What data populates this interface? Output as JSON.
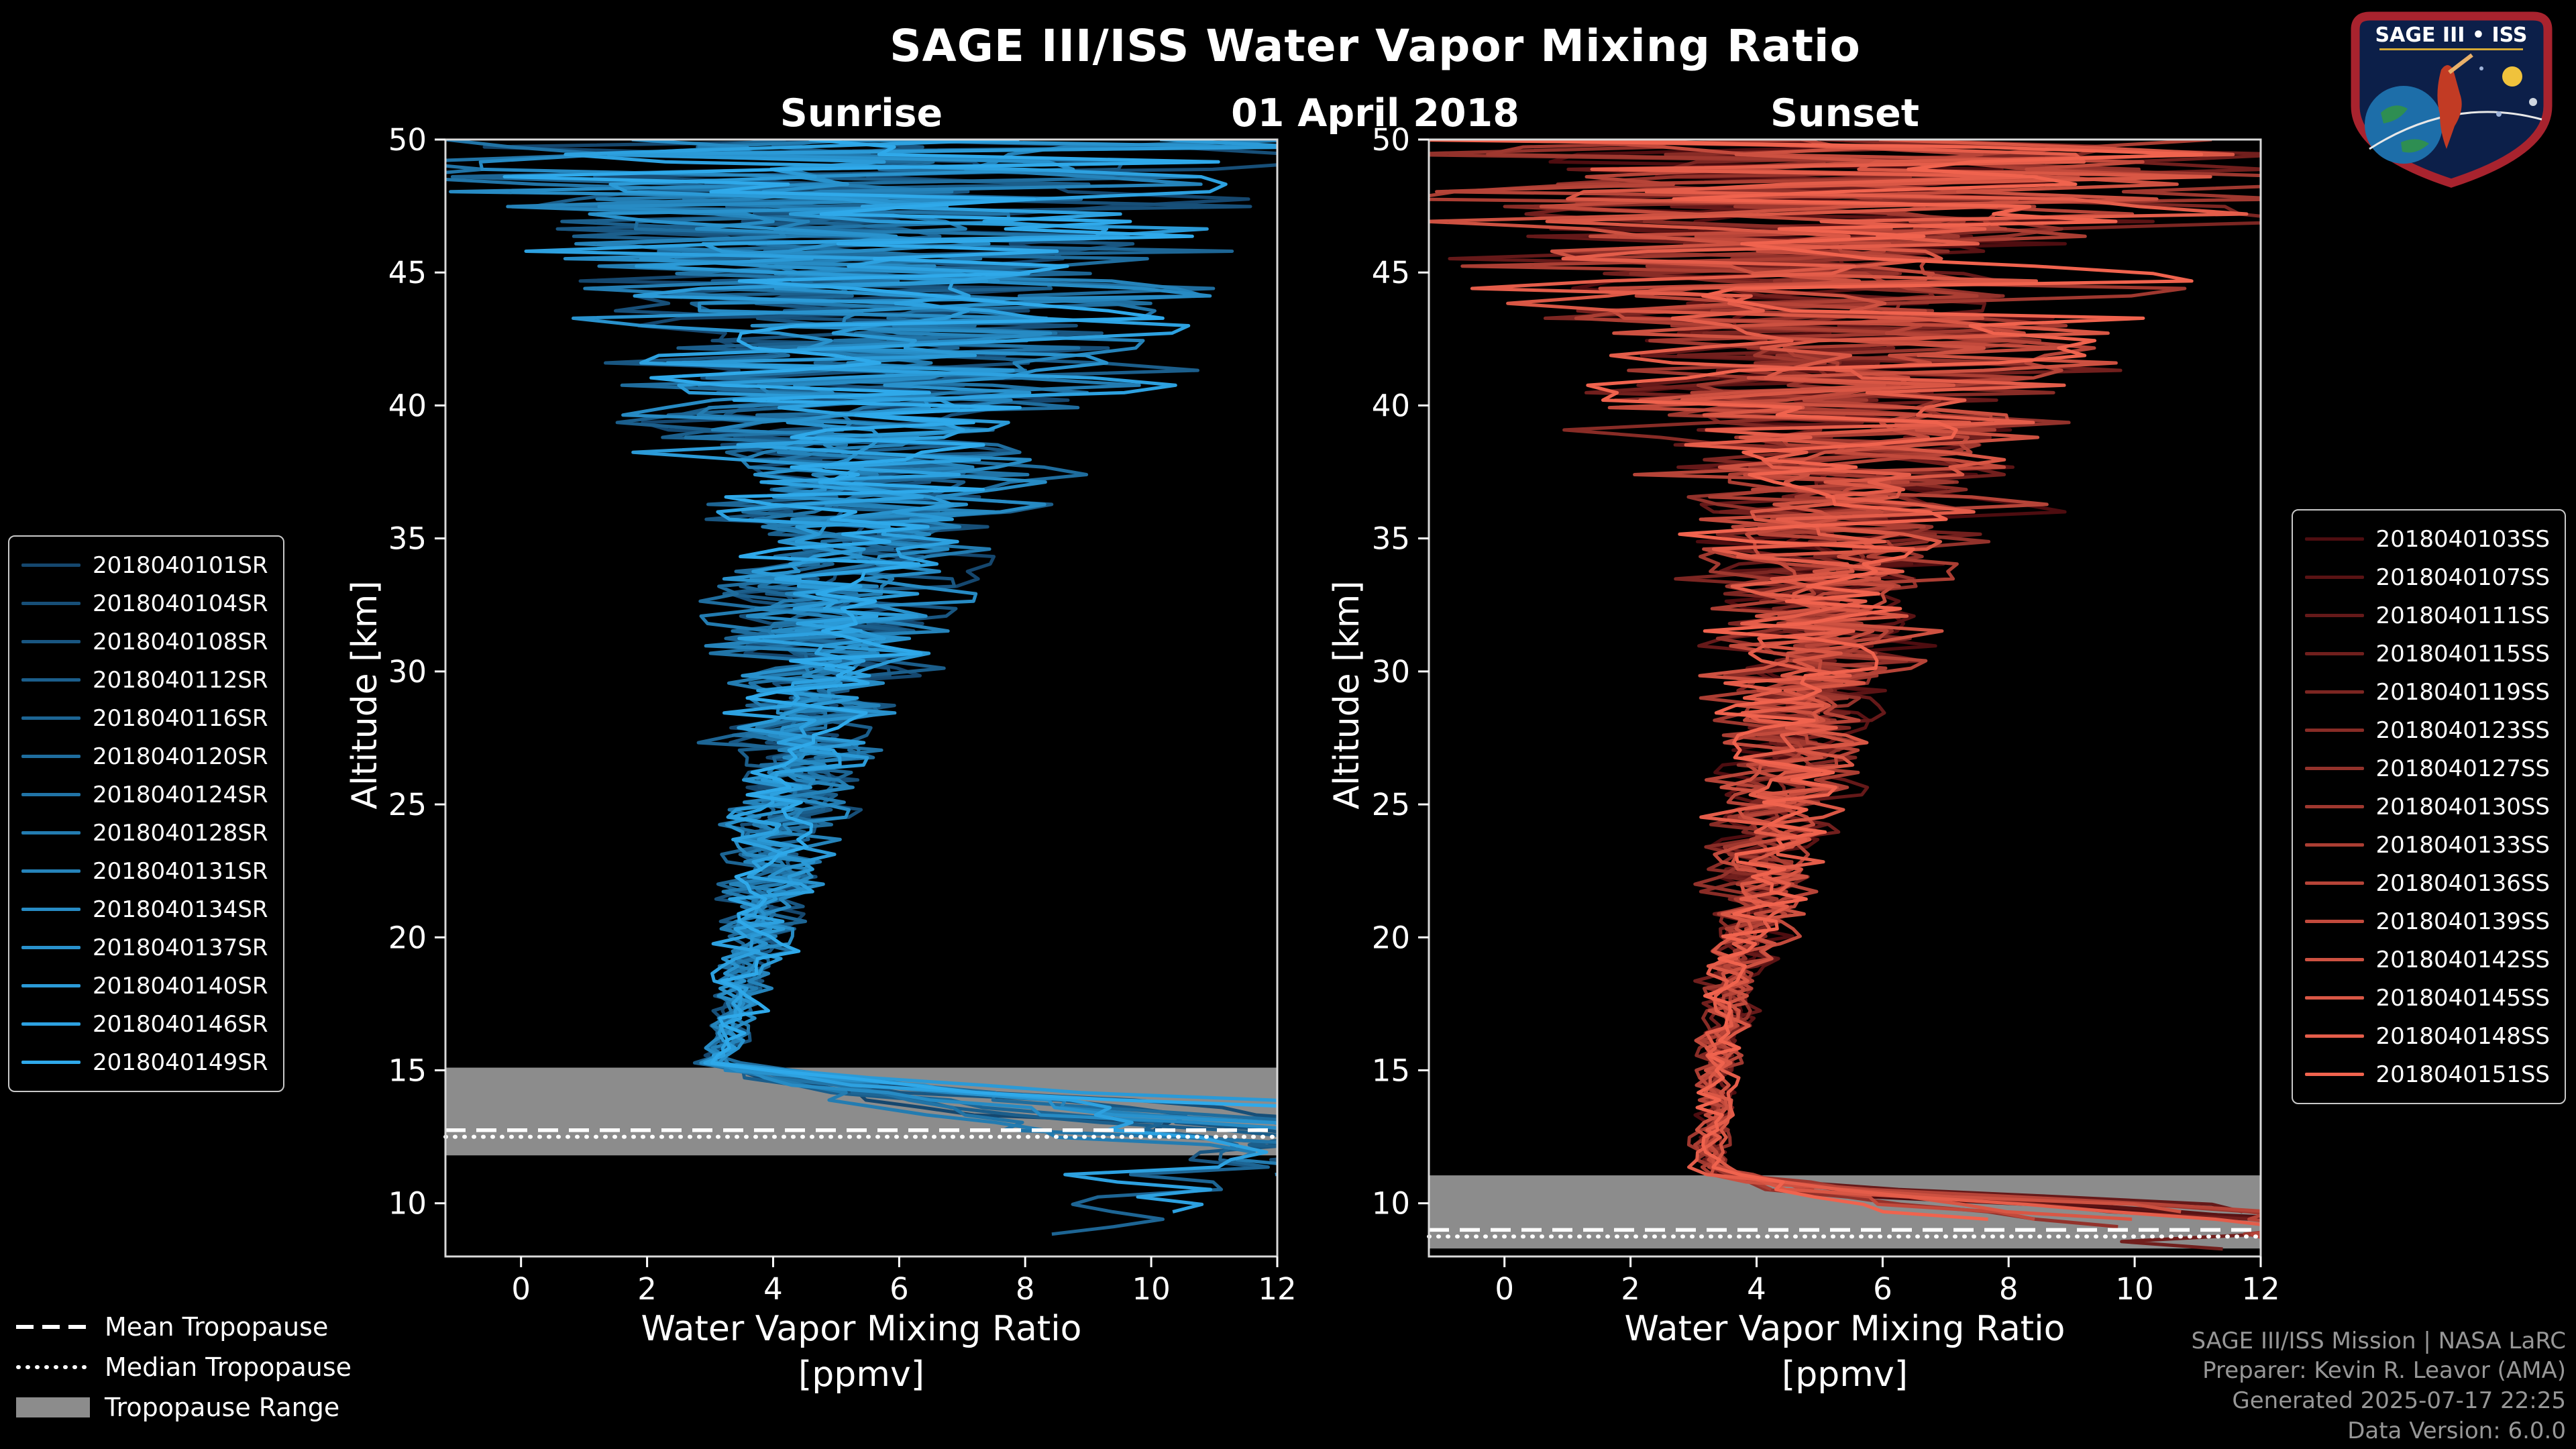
{
  "header": {
    "title": "SAGE III/ISS Water Vapor Mixing Ratio",
    "date": "01 April 2018"
  },
  "logo": {
    "text": "SAGE III • ISS"
  },
  "tropopause_legend": {
    "mean": "Mean Tropopause",
    "median": "Median Tropopause",
    "range": "Tropopause Range",
    "line_color": "#ffffff",
    "range_color": "#8c8c8c"
  },
  "footer": {
    "line1": "SAGE III/ISS Mission | NASA LaRC",
    "line2": "Preparer: Kevin R. Leavor (AMA)",
    "line3": "Generated 2025-07-17 22:25",
    "line4": "Data Version: 6.0.0"
  },
  "chart_data": [
    {
      "type": "line",
      "title": "Sunrise",
      "xlabel_line1": "Water Vapor Mixing Ratio",
      "xlabel_line2": "[ppmv]",
      "ylabel": "Altitude [km]",
      "xlim": [
        -1.2,
        12
      ],
      "ylim": [
        8,
        50
      ],
      "xticks": [
        0,
        2,
        4,
        6,
        8,
        10,
        12
      ],
      "yticks": [
        10,
        15,
        20,
        25,
        30,
        35,
        40,
        45,
        50
      ],
      "grid": false,
      "background": "#000000",
      "legend_position": "outside-left",
      "colors": {
        "start": "#15476e",
        "end": "#2fa9ea"
      },
      "series": [
        {
          "name": "2018040101SR"
        },
        {
          "name": "2018040104SR"
        },
        {
          "name": "2018040108SR"
        },
        {
          "name": "2018040112SR"
        },
        {
          "name": "2018040116SR"
        },
        {
          "name": "2018040120SR"
        },
        {
          "name": "2018040124SR"
        },
        {
          "name": "2018040128SR"
        },
        {
          "name": "2018040131SR"
        },
        {
          "name": "2018040134SR"
        },
        {
          "name": "2018040137SR"
        },
        {
          "name": "2018040140SR"
        },
        {
          "name": "2018040146SR"
        },
        {
          "name": "2018040149SR"
        }
      ],
      "mean_profile": {
        "altitude_km": [
          50,
          46,
          42,
          40,
          36,
          32,
          28,
          24,
          20,
          18,
          16,
          15,
          13,
          11
        ],
        "ppmv": [
          5.2,
          5.4,
          5.5,
          5.4,
          5.2,
          4.9,
          4.6,
          4.2,
          3.8,
          3.5,
          3.2,
          3.1,
          3.0,
          3.0
        ]
      },
      "noise_amplitude": {
        "altitude_km": [
          50,
          46,
          42,
          40,
          36,
          32,
          28,
          24,
          20,
          18,
          16,
          15,
          13,
          11
        ],
        "ppmv": [
          6.6,
          5.4,
          4.1,
          3.4,
          2.4,
          1.7,
          1.25,
          0.95,
          0.62,
          0.45,
          0.3,
          0.25,
          0.25,
          0.25
        ]
      },
      "bend_altitude_km": 15.35,
      "profile_bottom_km": [
        8.3,
        11.5
      ],
      "tropopause": {
        "mean_km": 12.75,
        "median_km": 12.5,
        "range_km": [
          11.8,
          15.1
        ]
      }
    },
    {
      "type": "line",
      "title": "Sunset",
      "xlabel_line1": "Water Vapor Mixing Ratio",
      "xlabel_line2": "[ppmv]",
      "ylabel": "Altitude [km]",
      "xlim": [
        -1.2,
        12
      ],
      "ylim": [
        8,
        50
      ],
      "xticks": [
        0,
        2,
        4,
        6,
        8,
        10,
        12
      ],
      "yticks": [
        10,
        15,
        20,
        25,
        30,
        35,
        40,
        45,
        50
      ],
      "grid": false,
      "background": "#000000",
      "legend_position": "outside-right",
      "colors": {
        "start": "#4e0d10",
        "end": "#f0634e"
      },
      "series": [
        {
          "name": "2018040103SS"
        },
        {
          "name": "2018040107SS"
        },
        {
          "name": "2018040111SS"
        },
        {
          "name": "2018040115SS"
        },
        {
          "name": "2018040119SS"
        },
        {
          "name": "2018040123SS"
        },
        {
          "name": "2018040127SS"
        },
        {
          "name": "2018040130SS"
        },
        {
          "name": "2018040133SS"
        },
        {
          "name": "2018040136SS"
        },
        {
          "name": "2018040139SS"
        },
        {
          "name": "2018040142SS"
        },
        {
          "name": "2018040145SS"
        },
        {
          "name": "2018040148SS"
        },
        {
          "name": "2018040151SS"
        }
      ],
      "mean_profile": {
        "altitude_km": [
          50,
          46,
          42,
          40,
          36,
          32,
          28,
          24,
          20,
          18,
          16,
          14,
          12,
          11
        ],
        "ppmv": [
          5.3,
          5.5,
          5.6,
          5.5,
          5.3,
          5.0,
          4.7,
          4.3,
          3.9,
          3.6,
          3.45,
          3.35,
          3.3,
          3.25
        ]
      },
      "noise_amplitude": {
        "altitude_km": [
          50,
          46,
          42,
          40,
          36,
          32,
          28,
          24,
          20,
          18,
          16,
          14,
          12,
          11
        ],
        "ppmv": [
          6.6,
          5.4,
          4.1,
          3.4,
          2.4,
          1.7,
          1.25,
          0.95,
          0.62,
          0.45,
          0.35,
          0.3,
          0.28,
          0.25
        ]
      },
      "bend_altitude_km": 11.25,
      "profile_bottom_km": [
        8.05,
        10.6
      ],
      "tropopause": {
        "mean_km": 9.0,
        "median_km": 8.75,
        "range_km": [
          8.3,
          11.05
        ]
      }
    }
  ]
}
